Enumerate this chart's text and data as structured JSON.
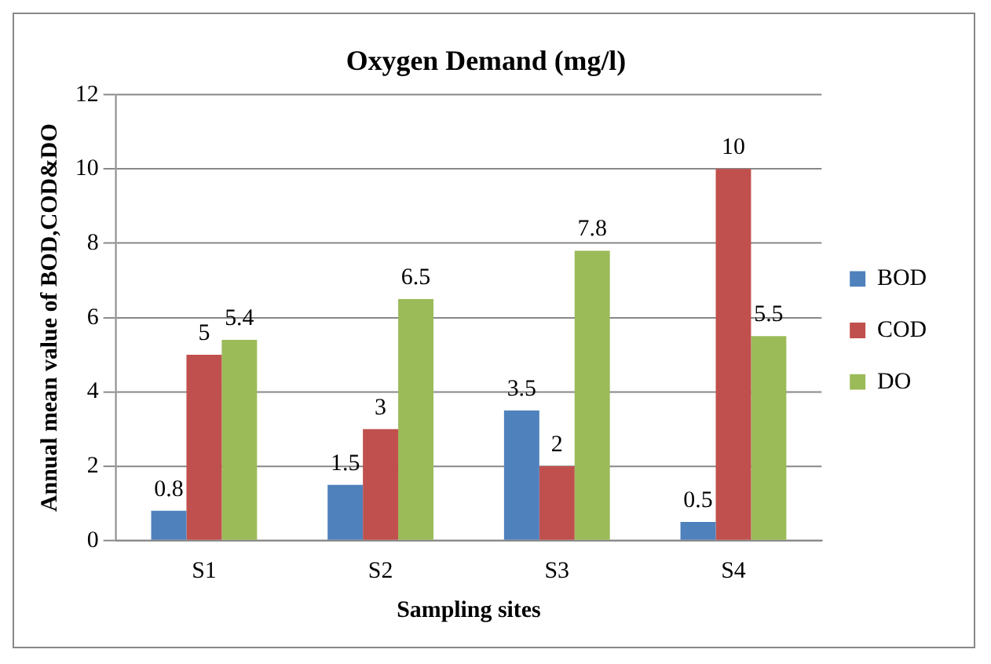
{
  "chart_data": {
    "type": "bar",
    "title": "Oxygen Demand (mg/l)",
    "xlabel": "Sampling sites",
    "ylabel": "Annual mean value of BOD,COD&DO",
    "categories": [
      "S1",
      "S2",
      "S3",
      "S4"
    ],
    "series": [
      {
        "name": "BOD",
        "color": "#4f81bd",
        "values": [
          0.8,
          1.5,
          3.5,
          0.5
        ]
      },
      {
        "name": "COD",
        "color": "#c0504d",
        "values": [
          5,
          3,
          2,
          10
        ]
      },
      {
        "name": "DO",
        "color": "#9bbb59",
        "values": [
          5.4,
          6.5,
          7.8,
          5.5
        ]
      }
    ],
    "ylim": [
      0,
      12
    ],
    "yticks": [
      0,
      2,
      4,
      6,
      8,
      10,
      12
    ],
    "grid": "y",
    "legend": "right",
    "data_labels": true
  }
}
